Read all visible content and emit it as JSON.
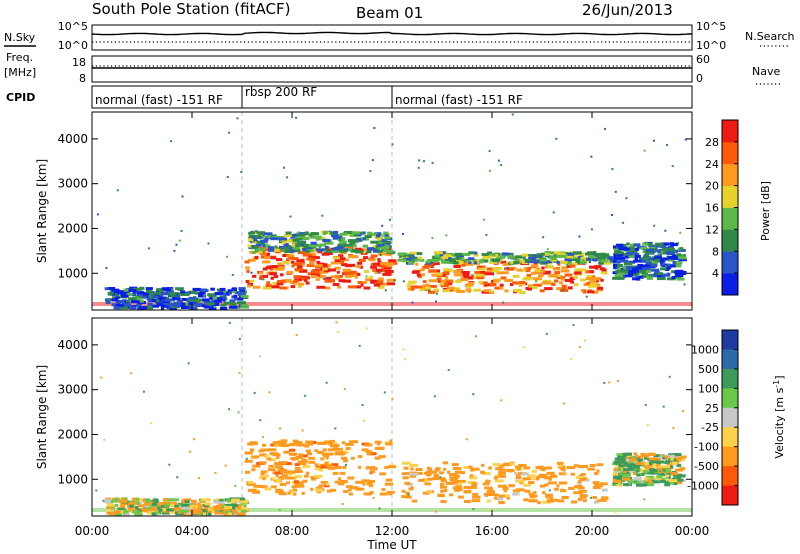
{
  "header": {
    "station": "South Pole Station (fitACF)",
    "beam": "Beam 01",
    "date": "26/Jun/2013"
  },
  "left_labels": {
    "nsky": "N.Sky",
    "freq": "Freq.",
    "freq_unit": "[MHz]",
    "cpid": "CPID"
  },
  "right_labels": {
    "nsearch": "N.Search",
    "nave": "Nave"
  },
  "noise_axes": {
    "left_top": "10^5",
    "left_bottom": "10^0",
    "right_top": "10^5",
    "right_bottom": "10^0"
  },
  "freq_axes": {
    "left_top": "18",
    "left_bottom": "8",
    "right_top": "60",
    "right_bottom": "0"
  },
  "cpid_segments": [
    {
      "label": "normal (fast) -151 RF",
      "start_h": 0,
      "end_h": 6
    },
    {
      "label": "rbsp 200 RF",
      "start_h": 6,
      "end_h": 12
    },
    {
      "label": "normal (fast) -151 RF",
      "start_h": 12,
      "end_h": 24
    }
  ],
  "chart_data": [
    {
      "type": "heatmap",
      "name": "power",
      "ylabel": "Slant Range [km]",
      "xlabel": "",
      "xlim": [
        0,
        24
      ],
      "ylim": [
        180,
        4600
      ],
      "y_ticks": [
        "1000",
        "2000",
        "3000",
        "4000"
      ],
      "colorbar": {
        "label": "Power [dB]",
        "range": [
          0,
          32
        ],
        "ticks": [
          "4",
          "8",
          "12",
          "16",
          "20",
          "24",
          "28"
        ],
        "colors": [
          "#0a1ee6",
          "#2a55c8",
          "#2e8a46",
          "#5cb84a",
          "#e6d22a",
          "#ff9a1e",
          "#ff5a0a",
          "#ee1a14"
        ]
      },
      "regions": [
        {
          "t0": 6.1,
          "t1": 11.9,
          "r0": 700,
          "r1": 1600,
          "level": 26
        },
        {
          "t0": 6.2,
          "t1": 11.8,
          "r0": 1500,
          "r1": 1950,
          "level": 11
        },
        {
          "t0": 12.5,
          "t1": 20.5,
          "r0": 600,
          "r1": 1300,
          "level": 24
        },
        {
          "t0": 12.2,
          "t1": 20.8,
          "r0": 1250,
          "r1": 1500,
          "level": 12
        },
        {
          "t0": 0.5,
          "t1": 6.0,
          "r0": 250,
          "r1": 700,
          "level": 6
        },
        {
          "t0": 20.8,
          "t1": 23.5,
          "r0": 900,
          "r1": 1700,
          "level": 7
        }
      ]
    },
    {
      "type": "heatmap",
      "name": "velocity",
      "ylabel": "Slant Range [km]",
      "xlabel": "Time UT",
      "xlim": [
        0,
        24
      ],
      "ylim": [
        180,
        4600
      ],
      "x_ticks": [
        "00:00",
        "04:00",
        "08:00",
        "12:00",
        "16:00",
        "20:00",
        "00:00"
      ],
      "y_ticks": [
        "1000",
        "2000",
        "3000",
        "4000"
      ],
      "colorbar": {
        "label": "Velocity [m s^-1]",
        "ticks": [
          "1000",
          "500",
          "100",
          "25",
          "-25",
          "-100",
          "-500",
          "-1000"
        ],
        "colors": [
          "#1e3ca0",
          "#2e6aa8",
          "#3c9a5a",
          "#6ac84a",
          "#c8c8c8",
          "#ffd24a",
          "#ff9a1e",
          "#ff5a0a",
          "#ee1a14"
        ]
      },
      "regions": [
        {
          "t0": 6.1,
          "t1": 11.9,
          "r0": 700,
          "r1": 1900,
          "level": -300
        },
        {
          "t0": 12.3,
          "t1": 20.5,
          "r0": 500,
          "r1": 1400,
          "level": -250
        },
        {
          "t0": 0.5,
          "t1": 6.0,
          "r0": 250,
          "r1": 600,
          "level": -60
        },
        {
          "t0": 20.8,
          "t1": 23.5,
          "r0": 900,
          "r1": 1600,
          "level": 60
        }
      ]
    }
  ]
}
